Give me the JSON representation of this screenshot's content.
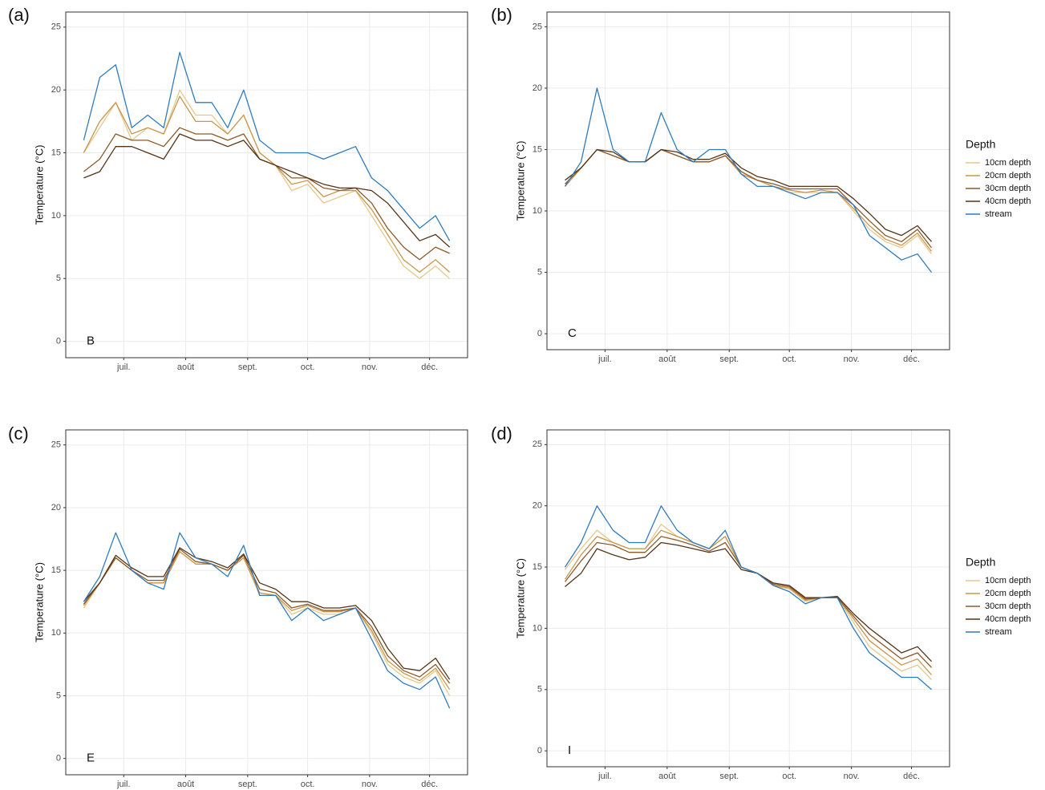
{
  "chart_data": [
    {
      "type": "line",
      "panel_label": "(a)",
      "annotation": "B",
      "y_label": "Temperature (°C)",
      "grid": true,
      "x": [
        162,
        170,
        178,
        186,
        194,
        202,
        210,
        218,
        226,
        234,
        242,
        250,
        258,
        266,
        274,
        282,
        290,
        298,
        306,
        314,
        322,
        330,
        338,
        345
      ],
      "xlim": [
        153,
        354
      ],
      "xticks": [
        {
          "value": 182,
          "label": "juil."
        },
        {
          "value": 213,
          "label": "août"
        },
        {
          "value": 244,
          "label": "sept."
        },
        {
          "value": 274,
          "label": "oct."
        },
        {
          "value": 305,
          "label": "nov."
        },
        {
          "value": 335,
          "label": "déc."
        }
      ],
      "ylim": [
        -1.3,
        26.2
      ],
      "yticks": [
        0,
        5,
        10,
        15,
        20,
        25
      ],
      "series": [
        {
          "color": "#e3c98c",
          "values": [
            15,
            17,
            19,
            16,
            17,
            16.5,
            20,
            18,
            18,
            16.5,
            18,
            15,
            14,
            12,
            12.5,
            11,
            11.5,
            12,
            10,
            8,
            6,
            5,
            6,
            5
          ]
        },
        {
          "color": "#c9954b",
          "values": [
            15,
            17.5,
            19,
            16.5,
            17,
            16.5,
            19.5,
            17.5,
            17.5,
            16.5,
            18,
            15,
            14,
            12.5,
            12.8,
            11.5,
            12,
            12,
            10.5,
            8.5,
            6.5,
            5.5,
            6.5,
            5.5
          ]
        },
        {
          "color": "#8c5a2b",
          "values": [
            13.5,
            14.5,
            16.5,
            16,
            16,
            15.5,
            17,
            16.5,
            16.5,
            16,
            16.5,
            14.5,
            14,
            13,
            13,
            12.2,
            12,
            12.2,
            11,
            9,
            7.5,
            6.5,
            7.5,
            7
          ]
        },
        {
          "color": "#553317",
          "values": [
            13,
            13.5,
            15.5,
            15.5,
            15,
            14.5,
            16.5,
            16,
            16,
            15.5,
            16,
            14.5,
            14,
            13.5,
            13,
            12.5,
            12.2,
            12.2,
            12,
            11,
            9.5,
            8,
            8.5,
            7.5
          ]
        },
        {
          "color": "#2f7bbf",
          "values": [
            16,
            21,
            22,
            17,
            18,
            17,
            23,
            19,
            19,
            17,
            20,
            16,
            15,
            15,
            15,
            14.5,
            15,
            15.5,
            13,
            12,
            10.5,
            9,
            10,
            8
          ]
        }
      ]
    },
    {
      "type": "line",
      "panel_label": "(b)",
      "annotation": "C",
      "y_label": "Temperature (°C)",
      "grid": true,
      "legend_title": "Depth",
      "x": [
        162,
        170,
        178,
        186,
        194,
        202,
        210,
        218,
        226,
        234,
        242,
        250,
        258,
        266,
        274,
        282,
        290,
        298,
        306,
        314,
        322,
        330,
        338,
        345
      ],
      "xlim": [
        153,
        354
      ],
      "xticks": [
        {
          "value": 182,
          "label": "juil."
        },
        {
          "value": 213,
          "label": "août"
        },
        {
          "value": 244,
          "label": "sept."
        },
        {
          "value": 274,
          "label": "oct."
        },
        {
          "value": 305,
          "label": "nov."
        },
        {
          "value": 335,
          "label": "déc."
        }
      ],
      "ylim": [
        -1.3,
        26.2
      ],
      "yticks": [
        0,
        5,
        10,
        15,
        20,
        25
      ],
      "series": [
        {
          "name": "10cm depth",
          "color": "#e3c98c",
          "values": [
            12,
            13.5,
            15,
            14.5,
            14,
            14,
            15,
            14.5,
            14,
            14,
            14.5,
            13,
            12.5,
            12,
            11.5,
            11.5,
            11.5,
            11.5,
            10,
            8.5,
            7.5,
            7,
            8,
            6.5
          ]
        },
        {
          "name": "20cm depth",
          "color": "#c9954b",
          "values": [
            12,
            13.5,
            15,
            14.5,
            14,
            14,
            15,
            14.5,
            14,
            14,
            14.5,
            13,
            12.5,
            12,
            11.7,
            11.5,
            11.7,
            11.5,
            10.2,
            8.8,
            7.7,
            7.2,
            8.2,
            6.7
          ]
        },
        {
          "name": "30cm depth",
          "color": "#8c5a2b",
          "values": [
            12.2,
            13.5,
            15,
            14.5,
            14,
            14,
            15,
            14.5,
            14,
            14,
            14.5,
            13.2,
            12.5,
            12.2,
            11.8,
            11.8,
            11.8,
            11.8,
            10.5,
            9.2,
            8,
            7.5,
            8.5,
            7
          ]
        },
        {
          "name": "40cm depth",
          "color": "#553317",
          "values": [
            12.5,
            13.5,
            15,
            14.8,
            14,
            14,
            15,
            14.8,
            14.2,
            14.2,
            14.7,
            13.5,
            12.8,
            12.5,
            12,
            12,
            12,
            12,
            11,
            9.8,
            8.5,
            8,
            8.8,
            7.5
          ]
        },
        {
          "name": "stream",
          "color": "#2f7bbf",
          "values": [
            12,
            14,
            20,
            15,
            14,
            14,
            18,
            15,
            14,
            15,
            15,
            13,
            12,
            12,
            11.5,
            11,
            11.5,
            11.5,
            10.5,
            8,
            7,
            6,
            6.5,
            5
          ]
        }
      ]
    },
    {
      "type": "line",
      "panel_label": "(c)",
      "annotation": "E",
      "y_label": "Temperature (°C)",
      "grid": true,
      "x": [
        162,
        170,
        178,
        186,
        194,
        202,
        210,
        218,
        226,
        234,
        242,
        250,
        258,
        266,
        274,
        282,
        290,
        298,
        306,
        314,
        322,
        330,
        338,
        345
      ],
      "xlim": [
        153,
        354
      ],
      "xticks": [
        {
          "value": 182,
          "label": "juil."
        },
        {
          "value": 213,
          "label": "août"
        },
        {
          "value": 244,
          "label": "sept."
        },
        {
          "value": 274,
          "label": "oct."
        },
        {
          "value": 305,
          "label": "nov."
        },
        {
          "value": 335,
          "label": "déc."
        }
      ],
      "ylim": [
        -1.3,
        26.2
      ],
      "yticks": [
        0,
        5,
        10,
        15,
        20,
        25
      ],
      "series": [
        {
          "color": "#e3c98c",
          "values": [
            12,
            14,
            16,
            15,
            14,
            14,
            16.5,
            15.5,
            15.5,
            15,
            16,
            13,
            13,
            11.5,
            12,
            11.5,
            11.5,
            12,
            10,
            7.5,
            6.5,
            6,
            7,
            5
          ]
        },
        {
          "color": "#c9954b",
          "values": [
            12.2,
            14,
            16,
            15,
            14,
            14,
            16.5,
            15.5,
            15.5,
            15,
            16,
            13.2,
            13,
            11.8,
            12.2,
            11.7,
            11.7,
            12,
            10.2,
            7.8,
            6.8,
            6.2,
            7.2,
            5.5
          ]
        },
        {
          "color": "#8c5a2b",
          "values": [
            12.3,
            14,
            16,
            15,
            14.2,
            14.2,
            16.7,
            15.7,
            15.5,
            15,
            16.2,
            13.5,
            13.2,
            12,
            12.3,
            11.8,
            11.8,
            12,
            10.5,
            8.2,
            7,
            6.5,
            7.5,
            6
          ]
        },
        {
          "color": "#553317",
          "values": [
            12.5,
            14,
            16.2,
            15.2,
            14.5,
            14.5,
            16.8,
            16,
            15.7,
            15.2,
            16.3,
            14,
            13.5,
            12.5,
            12.5,
            12,
            12,
            12.2,
            11,
            8.8,
            7.2,
            7,
            8,
            6.3
          ]
        },
        {
          "color": "#2f7bbf",
          "values": [
            12.5,
            14.5,
            18,
            15,
            14,
            13.5,
            18,
            16,
            15.5,
            14.5,
            17,
            13,
            13,
            11,
            12,
            11,
            11.5,
            12,
            9.5,
            7,
            6,
            5.5,
            6.5,
            4
          ]
        }
      ]
    },
    {
      "type": "line",
      "panel_label": "(d)",
      "annotation": "I",
      "y_label": "Temperature (°C)",
      "grid": true,
      "legend_title": "Depth",
      "x": [
        162,
        170,
        178,
        186,
        194,
        202,
        210,
        218,
        226,
        234,
        242,
        250,
        258,
        266,
        274,
        282,
        290,
        298,
        306,
        314,
        322,
        330,
        338,
        345
      ],
      "xlim": [
        153,
        354
      ],
      "xticks": [
        {
          "value": 182,
          "label": "juil."
        },
        {
          "value": 213,
          "label": "août"
        },
        {
          "value": 244,
          "label": "sept."
        },
        {
          "value": 274,
          "label": "oct."
        },
        {
          "value": 305,
          "label": "nov."
        },
        {
          "value": 335,
          "label": "déc."
        }
      ],
      "ylim": [
        -1.3,
        26.2
      ],
      "yticks": [
        0,
        5,
        10,
        15,
        20,
        25
      ],
      "series": [
        {
          "name": "10cm depth",
          "color": "#e3c98c",
          "values": [
            14.8,
            16.5,
            18,
            17,
            16.5,
            16.5,
            18.5,
            17.5,
            17,
            16.5,
            17.5,
            15,
            14.5,
            13.5,
            13.2,
            12.2,
            12.5,
            12.5,
            10.5,
            8.5,
            7.5,
            6.5,
            7,
            5.8
          ]
        },
        {
          "name": "20cm depth",
          "color": "#c9954b",
          "values": [
            14,
            16,
            17.5,
            17,
            16.5,
            16.5,
            18,
            17.5,
            17,
            16.5,
            17.5,
            15,
            14.5,
            13.5,
            13.3,
            12.3,
            12.5,
            12.5,
            10.8,
            9,
            8,
            7,
            7.5,
            6.2
          ]
        },
        {
          "name": "30cm depth",
          "color": "#8c5a2b",
          "values": [
            13.8,
            15.5,
            17,
            16.8,
            16.2,
            16.2,
            17.5,
            17.2,
            16.8,
            16.3,
            17,
            15,
            14.5,
            13.6,
            13.4,
            12.4,
            12.5,
            12.5,
            11,
            9.5,
            8.5,
            7.5,
            8,
            6.8
          ]
        },
        {
          "name": "40cm depth",
          "color": "#553317",
          "values": [
            13.4,
            14.5,
            16.5,
            16,
            15.6,
            15.8,
            17,
            16.8,
            16.5,
            16.2,
            16.5,
            14.8,
            14.5,
            13.7,
            13.5,
            12.5,
            12.5,
            12.6,
            11.2,
            10,
            9,
            8,
            8.5,
            7.3
          ]
        },
        {
          "name": "stream",
          "color": "#2f7bbf",
          "values": [
            15,
            17,
            20,
            18,
            17,
            17,
            20,
            18,
            17,
            16.5,
            18,
            15,
            14.5,
            13.5,
            13,
            12,
            12.5,
            12.5,
            10,
            8,
            7,
            6,
            6,
            5
          ]
        }
      ]
    }
  ]
}
